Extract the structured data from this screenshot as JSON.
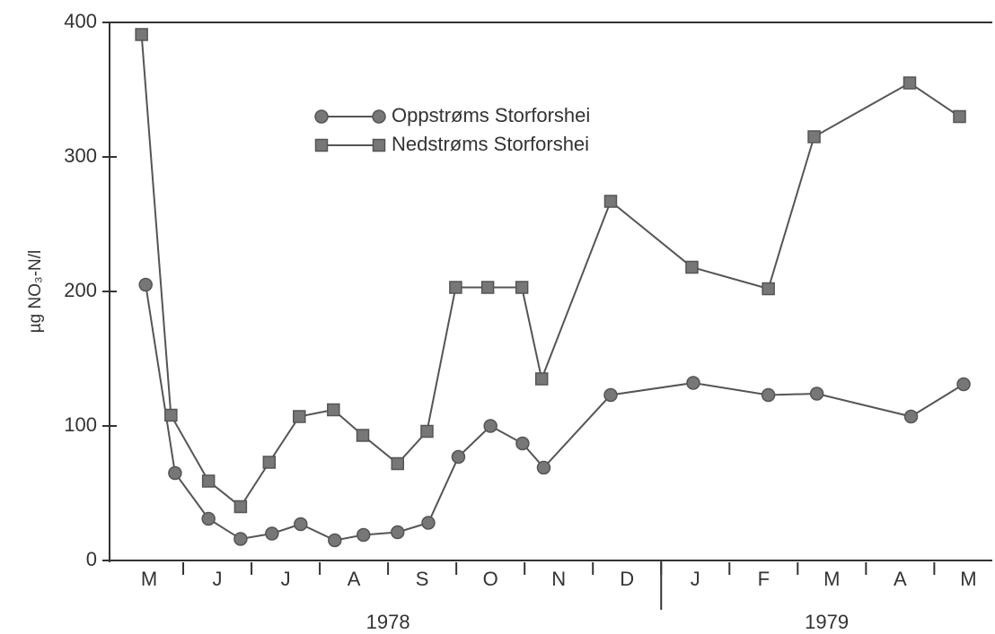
{
  "chart_data": {
    "type": "line",
    "y_label": "µg NO₃-N/l",
    "ylim": [
      0,
      400
    ],
    "yticks": [
      0,
      100,
      200,
      300,
      400
    ],
    "xlim": [
      0,
      12.85
    ],
    "xticks": [
      {
        "value": 0.5,
        "label": "M"
      },
      {
        "value": 1.5,
        "label": "J"
      },
      {
        "value": 2.5,
        "label": "J"
      },
      {
        "value": 3.5,
        "label": "A"
      },
      {
        "value": 4.5,
        "label": "S"
      },
      {
        "value": 5.5,
        "label": "O"
      },
      {
        "value": 6.5,
        "label": "N"
      },
      {
        "value": 7.5,
        "label": "D"
      },
      {
        "value": 8.5,
        "label": "J"
      },
      {
        "value": 9.5,
        "label": "F"
      },
      {
        "value": 10.5,
        "label": "M"
      },
      {
        "value": 11.5,
        "label": "A"
      },
      {
        "value": 12.5,
        "label": "M"
      }
    ],
    "x_groups": [
      {
        "label": "1978",
        "range": [
          0,
          8
        ]
      },
      {
        "label": "1979",
        "range": [
          8,
          12.85
        ]
      }
    ],
    "legend": "top-center",
    "series": [
      {
        "name": "Oppstrøms Storforshei",
        "color": "#555555",
        "marker": "circle",
        "x": [
          0.45,
          0.88,
          1.37,
          1.84,
          2.3,
          2.72,
          3.22,
          3.64,
          4.14,
          4.59,
          5.03,
          5.5,
          5.97,
          6.28,
          7.26,
          8.47,
          9.57,
          10.28,
          11.66,
          12.43
        ],
        "values": [
          205,
          65,
          31,
          16,
          20,
          27,
          15,
          19,
          21,
          28,
          77,
          100,
          87,
          69,
          123,
          132,
          123,
          124,
          107,
          131
        ]
      },
      {
        "name": "Nedstrøms Storforshei",
        "color": "#555555",
        "marker": "square",
        "x": [
          0.39,
          0.82,
          1.37,
          1.84,
          2.26,
          2.7,
          3.2,
          3.63,
          4.14,
          4.57,
          4.99,
          5.46,
          5.96,
          6.25,
          7.26,
          8.45,
          9.57,
          10.24,
          11.64,
          12.37
        ],
        "values": [
          391,
          108,
          59,
          40,
          73,
          107,
          112,
          93,
          72,
          96,
          203,
          203,
          203,
          135,
          267,
          218,
          202,
          315,
          355,
          330
        ]
      }
    ]
  }
}
